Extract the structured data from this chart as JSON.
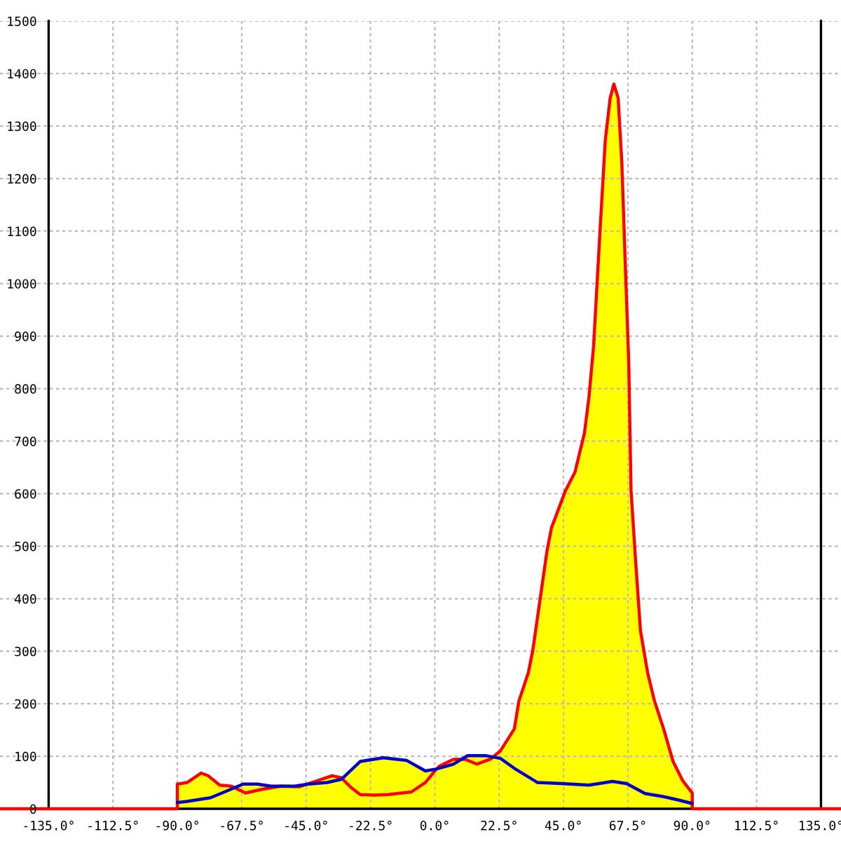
{
  "chart_data": {
    "type": "area",
    "xlim": [
      -152,
      142
    ],
    "ylim": [
      0,
      1500
    ],
    "xticks": [
      {
        "value": -135,
        "label": "-135.0°"
      },
      {
        "value": -112.5,
        "label": "-112.5°"
      },
      {
        "value": -90,
        "label": "-90.0°"
      },
      {
        "value": -67.5,
        "label": "-67.5°"
      },
      {
        "value": -45,
        "label": "-45.0°"
      },
      {
        "value": -22.5,
        "label": "-22.5°"
      },
      {
        "value": 0,
        "label": "0.0°"
      },
      {
        "value": 22.5,
        "label": "22.5°"
      },
      {
        "value": 45,
        "label": "45.0°"
      },
      {
        "value": 67.5,
        "label": "67.5°"
      },
      {
        "value": 90,
        "label": "90.0°"
      },
      {
        "value": 112.5,
        "label": "112.5°"
      },
      {
        "value": 135,
        "label": "135.0°"
      }
    ],
    "yticks": [
      0,
      100,
      200,
      300,
      400,
      500,
      600,
      700,
      800,
      900,
      1000,
      1100,
      1200,
      1300,
      1400,
      1500
    ],
    "grid": true,
    "series": [
      {
        "color": "#ffff00",
        "x": [
          -90,
          -90,
          -86.6,
          -81.7,
          -79.3,
          -75.2,
          -71.1,
          -67,
          -62.1,
          -57.2,
          -53.9,
          -49,
          -44.1,
          -40.8,
          -35.9,
          -32.7,
          -29.4,
          -26.1,
          -18,
          -9.8,
          -3.3,
          0,
          1.6,
          6.5,
          10.6,
          11.4,
          18,
          19.6,
          22.9,
          27.8,
          29.4,
          32.7,
          34.3,
          39.2,
          40.8,
          45.7,
          49,
          52.3,
          53.9,
          55.5,
          57.7,
          59.6,
          61.3,
          62.6,
          64.1,
          65.4,
          66.5,
          67.8,
          68.6,
          70.2,
          71.9,
          74.4,
          76.8,
          80,
          83.3,
          86.6,
          90,
          90
        ],
        "values": [
          0,
          47,
          50,
          68,
          63,
          45,
          43,
          47,
          47,
          43,
          43,
          43,
          47,
          54,
          63,
          59,
          72,
          90,
          97,
          92,
          72,
          75,
          81,
          94,
          98,
          101,
          101,
          100,
          110,
          152,
          205,
          259,
          303,
          490,
          535,
          606,
          641,
          715,
          784,
          880,
          1095,
          1273,
          1353,
          1380,
          1353,
          1228,
          1051,
          850,
          606,
          472,
          339,
          259,
          205,
          152,
          90,
          54,
          30,
          0
        ]
      },
      {
        "type": "line",
        "color": "#ff0000",
        "x": [
          -152,
          -90,
          -90,
          -86.6,
          -81.7,
          -79.3,
          -75.2,
          -71.1,
          -66.2,
          -60.4,
          -53.9,
          -47.4,
          -40.8,
          -35.9,
          -32.7,
          -29.4,
          -26.1,
          -21.2,
          -16.3,
          -8.2,
          -3.3,
          0,
          1.6,
          6.5,
          10.6,
          14.7,
          19.6,
          22.9,
          27.8,
          29.4,
          32.7,
          34.3,
          39.2,
          40.8,
          45.7,
          49,
          52.3,
          53.9,
          55.5,
          57.7,
          59.6,
          61.3,
          62.6,
          64.1,
          65.4,
          66.5,
          67.8,
          68.6,
          70.2,
          71.9,
          74.4,
          76.8,
          80,
          83.3,
          86.6,
          90,
          90,
          142
        ],
        "values": [
          0,
          0,
          47,
          50,
          68,
          63,
          45,
          43,
          30,
          37,
          43,
          42,
          54,
          63,
          59,
          41,
          27,
          26,
          27,
          32,
          50,
          72,
          81,
          94,
          94,
          85,
          95,
          110,
          152,
          205,
          259,
          303,
          490,
          535,
          606,
          641,
          715,
          784,
          880,
          1095,
          1273,
          1353,
          1380,
          1353,
          1228,
          1051,
          850,
          606,
          472,
          339,
          259,
          205,
          152,
          90,
          54,
          30,
          0,
          0
        ]
      },
      {
        "type": "line",
        "color": "#0000cc",
        "x": [
          -90,
          -86.6,
          -78.4,
          -73.5,
          -67,
          -62.1,
          -57.2,
          -49,
          -44.1,
          -37.6,
          -32.7,
          -26.1,
          -18,
          -9.8,
          -3.3,
          0,
          3.3,
          6.5,
          11.4,
          18,
          22.9,
          27.8,
          35.9,
          44.1,
          53.9,
          62.1,
          67,
          73.5,
          80,
          84.9,
          90
        ],
        "values": [
          12,
          14,
          21,
          32,
          47,
          47,
          43,
          43,
          47,
          50,
          56,
          90,
          97,
          92,
          72,
          75,
          80,
          85,
          101,
          101,
          96,
          77,
          50,
          48,
          45,
          52,
          48,
          29,
          23,
          17,
          10
        ]
      }
    ]
  }
}
